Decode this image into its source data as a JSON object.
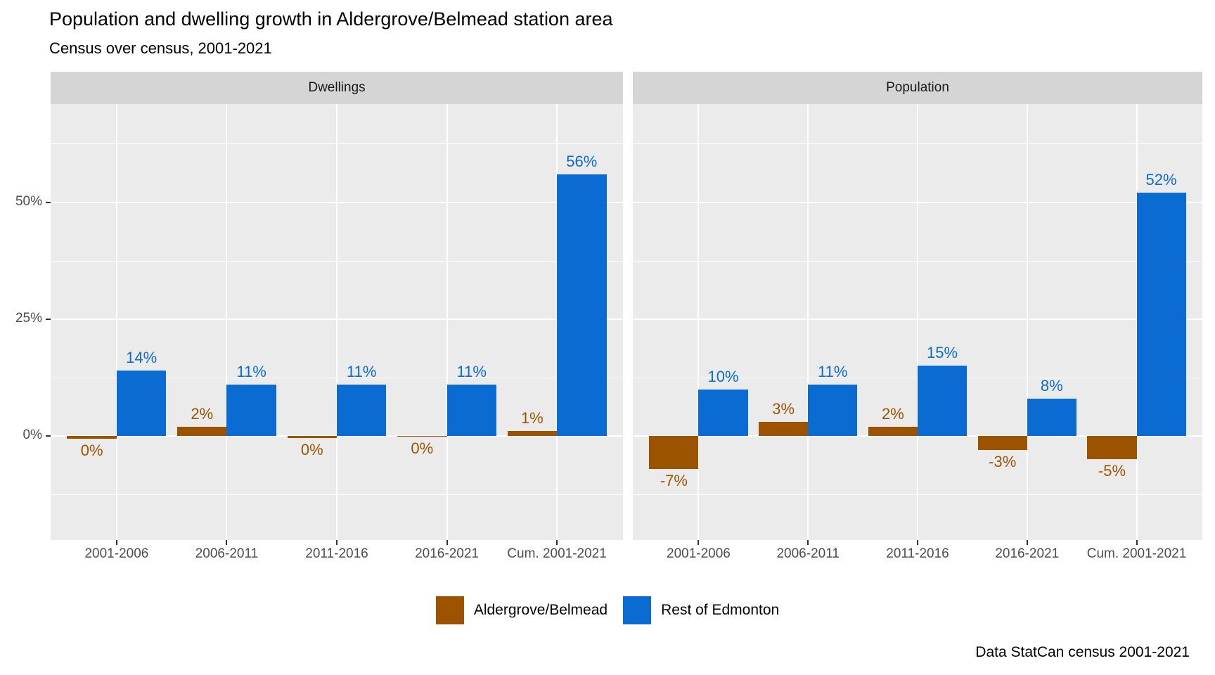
{
  "title": "Population and dwelling growth in Aldergrove/Belmead station area",
  "subtitle": "Census over census, 2001-2021",
  "caption": "Data StatCan census 2001-2021",
  "colors": {
    "aldergrove": "#9C5300",
    "edmonton": "#0A6CD2",
    "panel_bg": "#EBEBEB",
    "strip_bg": "#D5D5D5",
    "grid": "#FFFFFF",
    "axis_text": "#4D4D4D"
  },
  "legend": {
    "items": [
      {
        "label": "Aldergrove/Belmead",
        "color_key": "aldergrove"
      },
      {
        "label": "Rest of Edmonton",
        "color_key": "edmonton"
      }
    ]
  },
  "y_axis": {
    "tick_labels": [
      "50%",
      "25%",
      "0%"
    ],
    "tick_values": [
      50,
      25,
      0
    ],
    "minor_values": [
      62.5,
      37.5,
      12.5,
      -12.5
    ]
  },
  "chart_data": {
    "type": "bar",
    "categories": [
      "2001-2006",
      "2006-2011",
      "2011-2016",
      "2016-2021",
      "Cum. 2001-2021"
    ],
    "facets": [
      {
        "label": "Dwellings",
        "series": [
          {
            "name": "Aldergrove/Belmead",
            "color_key": "aldergrove",
            "values": [
              0,
              2,
              0,
              0,
              1
            ],
            "labels": [
              "0%",
              "2%",
              "0%",
              "0%",
              "1%"
            ],
            "draw": [
              -0.6,
              2,
              -0.4,
              -0.15,
              1
            ]
          },
          {
            "name": "Rest of Edmonton",
            "color_key": "edmonton",
            "values": [
              14,
              11,
              11,
              11,
              56
            ],
            "labels": [
              "14%",
              "11%",
              "11%",
              "11%",
              "56%"
            ],
            "draw": [
              14,
              11,
              11,
              11,
              56
            ]
          }
        ]
      },
      {
        "label": "Population",
        "series": [
          {
            "name": "Aldergrove/Belmead",
            "color_key": "aldergrove",
            "values": [
              -7,
              3,
              2,
              -3,
              -5
            ],
            "labels": [
              "-7%",
              "3%",
              "2%",
              "-3%",
              "-5%"
            ],
            "draw": [
              -7,
              3,
              2,
              -3,
              -5
            ]
          },
          {
            "name": "Rest of Edmonton",
            "color_key": "edmonton",
            "values": [
              10,
              11,
              15,
              8,
              52
            ],
            "labels": [
              "10%",
              "11%",
              "15%",
              "8%",
              "52%"
            ],
            "draw": [
              10,
              11,
              15,
              8,
              52
            ]
          }
        ]
      }
    ],
    "ylim": [
      -22,
      71
    ],
    "grid": true,
    "legend_position": "bottom"
  }
}
